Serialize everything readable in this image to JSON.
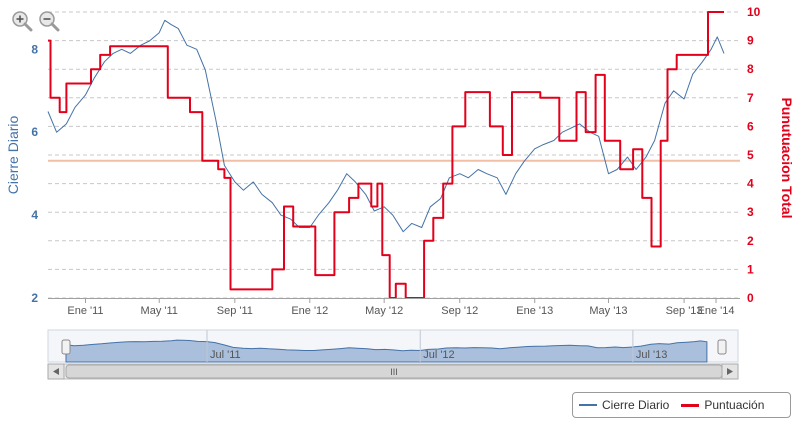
{
  "chart_data": {
    "type": "line",
    "title": "",
    "xlabel": "",
    "x_tick_labels": [
      "Ene '11",
      "May '11",
      "Sep '11",
      "Ene '12",
      "May '12",
      "Sep '12",
      "Ene '13",
      "May '13",
      "Sep '13",
      "Ene '14"
    ],
    "x_range": [
      "2010-11-01",
      "2013-12-01"
    ],
    "y_left": {
      "label": "Cierre Diario",
      "ticks": [
        "2",
        "4",
        "6",
        "8"
      ],
      "range": [
        2,
        8.9
      ],
      "color": "#4572a7"
    },
    "y_right": {
      "label": "Punutuacion Total",
      "ticks": [
        "0",
        "1",
        "2",
        "3",
        "4",
        "5",
        "6",
        "7",
        "8",
        "9",
        "10"
      ],
      "range": [
        0,
        10
      ],
      "color": "#e3001b"
    },
    "reference_line": {
      "axis": "right",
      "value": 4.8,
      "color": "#f2bfa6"
    },
    "grid": "horizontal dashed",
    "legend_position": "bottom-right",
    "series": [
      {
        "name": "Cierre Diario",
        "axis": "left",
        "color": "#4572a7",
        "points": [
          [
            "2010-11-01",
            6.5
          ],
          [
            "2010-11-15",
            6.0
          ],
          [
            "2010-12-01",
            6.2
          ],
          [
            "2010-12-15",
            6.6
          ],
          [
            "2011-01-01",
            6.9
          ],
          [
            "2011-01-15",
            7.3
          ],
          [
            "2011-02-01",
            7.7
          ],
          [
            "2011-02-15",
            7.9
          ],
          [
            "2011-03-01",
            8.0
          ],
          [
            "2011-03-15",
            7.9
          ],
          [
            "2011-04-01",
            8.1
          ],
          [
            "2011-04-15",
            8.2
          ],
          [
            "2011-05-01",
            8.4
          ],
          [
            "2011-05-10",
            8.7
          ],
          [
            "2011-05-20",
            8.6
          ],
          [
            "2011-06-01",
            8.5
          ],
          [
            "2011-06-15",
            8.1
          ],
          [
            "2011-07-01",
            8.0
          ],
          [
            "2011-07-15",
            7.5
          ],
          [
            "2011-08-01",
            6.3
          ],
          [
            "2011-08-15",
            5.2
          ],
          [
            "2011-09-01",
            4.8
          ],
          [
            "2011-09-15",
            4.6
          ],
          [
            "2011-10-01",
            4.8
          ],
          [
            "2011-10-15",
            4.5
          ],
          [
            "2011-11-01",
            4.3
          ],
          [
            "2011-11-15",
            4.0
          ],
          [
            "2011-12-01",
            3.9
          ],
          [
            "2011-12-15",
            3.7
          ],
          [
            "2012-01-01",
            3.7
          ],
          [
            "2012-01-15",
            4.0
          ],
          [
            "2012-02-01",
            4.3
          ],
          [
            "2012-02-15",
            4.6
          ],
          [
            "2012-03-01",
            5.0
          ],
          [
            "2012-03-15",
            4.8
          ],
          [
            "2012-04-01",
            4.5
          ],
          [
            "2012-04-15",
            4.1
          ],
          [
            "2012-05-01",
            4.2
          ],
          [
            "2012-05-15",
            4.0
          ],
          [
            "2012-06-01",
            3.6
          ],
          [
            "2012-06-15",
            3.8
          ],
          [
            "2012-07-01",
            3.7
          ],
          [
            "2012-07-15",
            4.2
          ],
          [
            "2012-08-01",
            4.4
          ],
          [
            "2012-08-15",
            4.9
          ],
          [
            "2012-09-01",
            5.0
          ],
          [
            "2012-09-15",
            4.9
          ],
          [
            "2012-10-01",
            5.1
          ],
          [
            "2012-10-15",
            5.0
          ],
          [
            "2012-11-01",
            4.9
          ],
          [
            "2012-11-15",
            4.5
          ],
          [
            "2012-12-01",
            5.0
          ],
          [
            "2012-12-15",
            5.3
          ],
          [
            "2013-01-01",
            5.6
          ],
          [
            "2013-01-15",
            5.7
          ],
          [
            "2013-02-01",
            5.8
          ],
          [
            "2013-02-15",
            6.0
          ],
          [
            "2013-03-01",
            6.1
          ],
          [
            "2013-03-15",
            6.2
          ],
          [
            "2013-04-01",
            6.0
          ],
          [
            "2013-04-15",
            5.9
          ],
          [
            "2013-05-01",
            5.0
          ],
          [
            "2013-05-15",
            5.1
          ],
          [
            "2013-06-01",
            5.4
          ],
          [
            "2013-06-15",
            5.1
          ],
          [
            "2013-07-01",
            5.4
          ],
          [
            "2013-07-15",
            5.8
          ],
          [
            "2013-08-01",
            6.7
          ],
          [
            "2013-08-15",
            7.0
          ],
          [
            "2013-09-01",
            6.8
          ],
          [
            "2013-09-15",
            7.4
          ],
          [
            "2013-10-01",
            7.7
          ],
          [
            "2013-10-15",
            8.0
          ],
          [
            "2013-10-25",
            8.3
          ],
          [
            "2013-11-05",
            7.9
          ]
        ]
      },
      {
        "name": "Puntuación",
        "axis": "right",
        "color": "#e3001b",
        "points": [
          [
            "2010-11-01",
            9.0
          ],
          [
            "2010-11-05",
            7.0
          ],
          [
            "2010-11-20",
            6.5
          ],
          [
            "2010-12-01",
            7.5
          ],
          [
            "2011-01-10",
            8.0
          ],
          [
            "2011-01-25",
            8.5
          ],
          [
            "2011-02-10",
            8.8
          ],
          [
            "2011-05-15",
            7.0
          ],
          [
            "2011-06-20",
            6.5
          ],
          [
            "2011-07-10",
            4.8
          ],
          [
            "2011-08-05",
            4.5
          ],
          [
            "2011-08-15",
            4.2
          ],
          [
            "2011-08-25",
            0.3
          ],
          [
            "2011-09-05",
            0.3
          ],
          [
            "2011-09-20",
            0.3
          ],
          [
            "2011-11-01",
            1.0
          ],
          [
            "2011-11-20",
            3.2
          ],
          [
            "2011-12-05",
            2.5
          ],
          [
            "2012-01-10",
            0.8
          ],
          [
            "2012-02-10",
            3.0
          ],
          [
            "2012-03-05",
            3.5
          ],
          [
            "2012-03-20",
            4.0
          ],
          [
            "2012-04-10",
            3.2
          ],
          [
            "2012-04-20",
            4.0
          ],
          [
            "2012-04-28",
            1.5
          ],
          [
            "2012-05-10",
            0.0
          ],
          [
            "2012-05-20",
            0.5
          ],
          [
            "2012-06-05",
            0.0
          ],
          [
            "2012-06-20",
            0.0
          ],
          [
            "2012-07-05",
            2.0
          ],
          [
            "2012-07-20",
            2.8
          ],
          [
            "2012-08-05",
            4.0
          ],
          [
            "2012-08-20",
            6.0
          ],
          [
            "2012-09-10",
            7.2
          ],
          [
            "2012-10-20",
            6.0
          ],
          [
            "2012-11-10",
            5.0
          ],
          [
            "2012-11-25",
            7.2
          ],
          [
            "2013-01-10",
            7.0
          ],
          [
            "2013-02-10",
            5.5
          ],
          [
            "2013-03-10",
            7.2
          ],
          [
            "2013-03-25",
            5.8
          ],
          [
            "2013-04-10",
            7.8
          ],
          [
            "2013-04-25",
            5.5
          ],
          [
            "2013-05-20",
            4.5
          ],
          [
            "2013-06-10",
            5.2
          ],
          [
            "2013-06-25",
            3.5
          ],
          [
            "2013-07-10",
            1.8
          ],
          [
            "2013-07-25",
            5.5
          ],
          [
            "2013-08-05",
            8.0
          ],
          [
            "2013-08-20",
            8.5
          ],
          [
            "2013-10-10",
            10.0
          ],
          [
            "2013-11-05",
            10.0
          ]
        ]
      }
    ],
    "navigator": {
      "x_tick_labels": [
        "Jul '11",
        "Jul '12",
        "Jul '13"
      ],
      "scrollbar_grip": "III"
    }
  },
  "toolbar": {
    "zoom_in_label": "zoom in",
    "zoom_out_label": "zoom out"
  }
}
